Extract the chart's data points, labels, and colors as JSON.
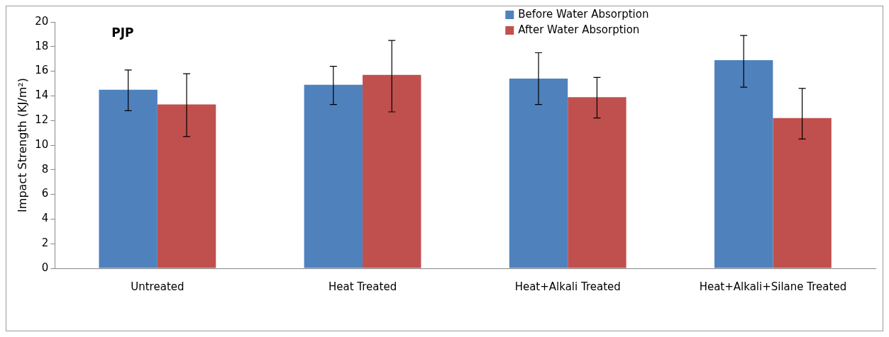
{
  "chart_data": {
    "type": "bar",
    "title": "PJP",
    "ylabel": "Impact Strength (KJ/m²)",
    "categories": [
      "Untreated",
      "Heat Treated",
      "Heat+Alkali Treated",
      "Heat+Alkali+Silane Treated"
    ],
    "series": [
      {
        "name": "Before Water Absorption",
        "color": "#4f81bd",
        "values": [
          14.5,
          14.9,
          15.4,
          16.9
        ],
        "errors": [
          [
            12.8,
            16.1
          ],
          [
            13.3,
            16.4
          ],
          [
            13.3,
            17.5
          ],
          [
            14.7,
            18.9
          ]
        ]
      },
      {
        "name": "After Water Absorption",
        "color": "#c0504d",
        "values": [
          13.3,
          15.7,
          13.9,
          12.2
        ],
        "errors": [
          [
            10.7,
            15.8
          ],
          [
            12.7,
            18.5
          ],
          [
            12.2,
            15.5
          ],
          [
            10.5,
            14.6
          ]
        ]
      }
    ],
    "ylim": [
      0,
      20
    ],
    "yticks": [
      0,
      2,
      4,
      6,
      8,
      10,
      12,
      14,
      16,
      18,
      20
    ],
    "grid": false,
    "legend": "top"
  }
}
